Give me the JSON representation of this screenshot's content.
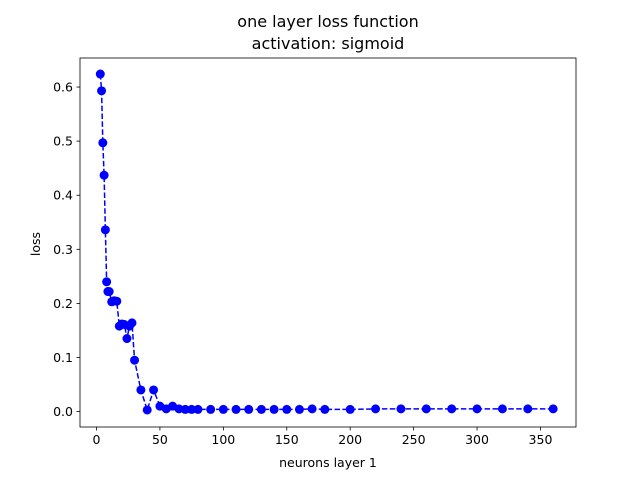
{
  "chart_data": {
    "type": "line",
    "title_line1": "one layer loss function",
    "title_line2": "activation: sigmoid",
    "xlabel": "neurons layer 1",
    "ylabel": "loss",
    "xlim": [
      -13,
      378
    ],
    "ylim": [
      -0.0285,
      0.6537
    ],
    "xticks": [
      0,
      50,
      100,
      150,
      200,
      250,
      300,
      350
    ],
    "yticks": [
      0.0,
      0.1,
      0.2,
      0.3,
      0.4,
      0.5,
      0.6
    ],
    "ytick_labels": [
      "0.0",
      "0.1",
      "0.2",
      "0.3",
      "0.4",
      "0.5",
      "0.6"
    ],
    "grid": false,
    "series": [
      {
        "color": "#0000ff",
        "line_style": "dashed",
        "marker": "circle",
        "x": [
          3,
          4,
          5,
          6,
          7,
          8,
          9,
          10,
          12,
          14,
          16,
          18,
          20,
          22,
          24,
          26,
          28,
          30,
          35,
          40,
          45,
          50,
          55,
          60,
          65,
          70,
          75,
          80,
          90,
          100,
          110,
          120,
          130,
          140,
          150,
          160,
          170,
          180,
          200,
          220,
          240,
          260,
          280,
          300,
          320,
          340,
          360
        ],
        "y": [
          0.624,
          0.593,
          0.497,
          0.437,
          0.336,
          0.24,
          0.222,
          0.222,
          0.203,
          0.205,
          0.204,
          0.158,
          0.162,
          0.161,
          0.135,
          0.158,
          0.164,
          0.095,
          0.04,
          0.003,
          0.04,
          0.01,
          0.005,
          0.01,
          0.005,
          0.004,
          0.004,
          0.004,
          0.004,
          0.004,
          0.004,
          0.004,
          0.004,
          0.004,
          0.004,
          0.004,
          0.005,
          0.004,
          0.004,
          0.005,
          0.005,
          0.005,
          0.005,
          0.005,
          0.005,
          0.005,
          0.005
        ]
      }
    ]
  }
}
